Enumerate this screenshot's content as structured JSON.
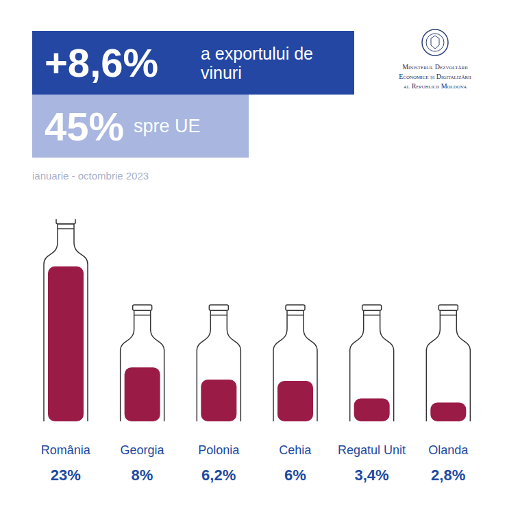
{
  "chart_data": {
    "type": "bar",
    "headline": [
      "+8,6%",
      "a exportului de vinuri"
    ],
    "subheadline": [
      "45%",
      "spre UE"
    ],
    "subtitle": "ianuarie - octombrie 2023",
    "source": [
      "Ministerul Dezvoltării",
      "Economice și Digitalizării",
      "al Republicii Moldova"
    ],
    "categories": [
      "România",
      "Georgia",
      "Polonia",
      "Cehia",
      "Regatul Unit",
      "Olanda"
    ],
    "values": [
      23,
      8,
      6.2,
      6,
      3.4,
      2.8
    ],
    "value_labels": [
      "23%",
      "8%",
      "6,2%",
      "6%",
      "3,4%",
      "2,8%"
    ],
    "color": "#9b1b47",
    "ylim": [
      0,
      30
    ],
    "data_labels": true,
    "tick_labels": "x"
  }
}
